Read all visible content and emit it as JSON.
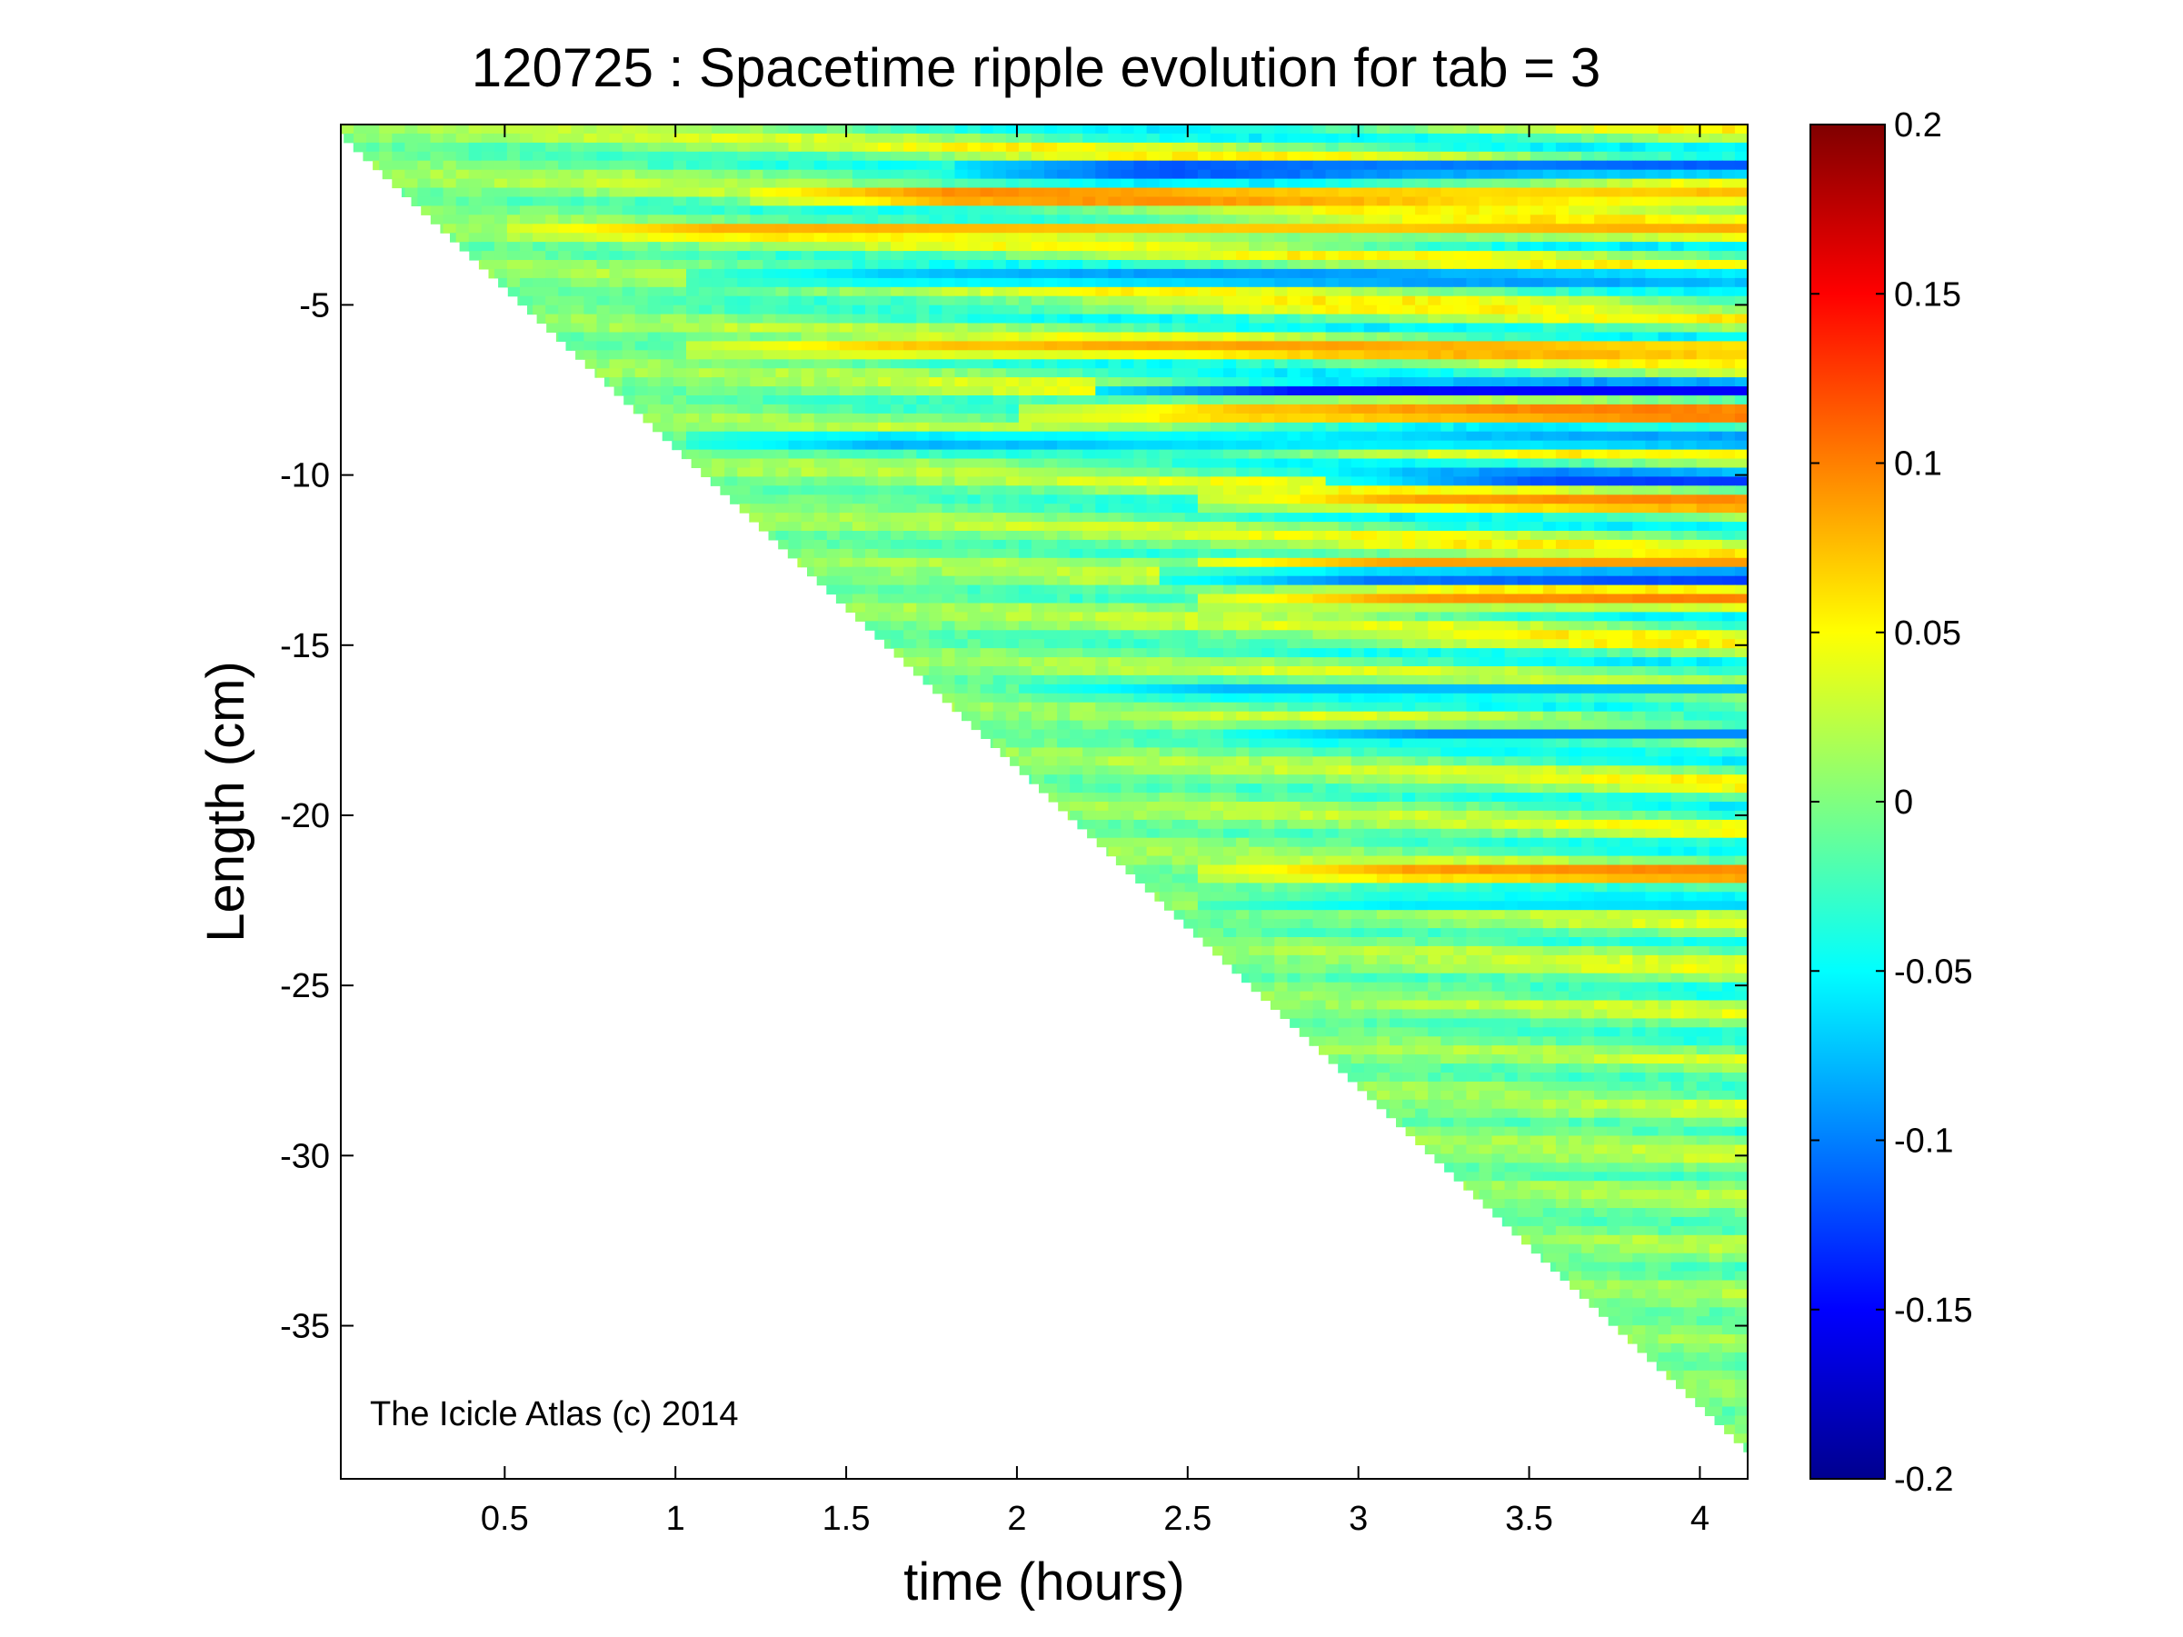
{
  "chart_data": {
    "type": "heatmap",
    "title": "120725 : Spacetime ripple evolution for tab = 3",
    "xlabel": "time (hours)",
    "ylabel": "Length (cm)",
    "xlim": [
      0.02,
      4.14
    ],
    "ylim": [
      -39.5,
      0.3
    ],
    "x_ticks": [
      0.5,
      1,
      1.5,
      2,
      2.5,
      3,
      3.5,
      4
    ],
    "x_tick_labels": [
      "0.5",
      "1",
      "1.5",
      "2",
      "2.5",
      "3",
      "3.5",
      "4"
    ],
    "y_ticks": [
      -5,
      -10,
      -15,
      -20,
      -25,
      -30,
      -35
    ],
    "y_tick_labels": [
      "-5",
      "-10",
      "-15",
      "-20",
      "-25",
      "-30",
      "-35"
    ],
    "colorbar": {
      "limits": [
        -0.2,
        0.2
      ],
      "ticks": [
        0.2,
        0.15,
        0.1,
        0.05,
        0,
        -0.05,
        -0.1,
        -0.15,
        -0.2
      ],
      "tick_labels": [
        "0.2",
        "0.15",
        "0.1",
        "0.05",
        "0",
        "-0.05",
        "-0.1",
        "-0.15",
        "-0.2"
      ],
      "colormap": "jet"
    },
    "data_region": {
      "front_start": [
        0.05,
        -0.3
      ],
      "front_end": [
        4.12,
        -38.5
      ]
    },
    "notable_bands": [
      {
        "y": -1.0,
        "value": -0.17,
        "x_from": 1.8,
        "x_to": 4.14
      },
      {
        "y": -1.8,
        "value": 0.12,
        "x_from": 1.2,
        "x_to": 4.14
      },
      {
        "y": -2.8,
        "value": 0.09,
        "x_from": 0.5,
        "x_to": 4.14
      },
      {
        "y": -4.2,
        "value": -0.11,
        "x_from": 1.0,
        "x_to": 4.14
      },
      {
        "y": -6.3,
        "value": 0.1,
        "x_from": 1.0,
        "x_to": 4.14
      },
      {
        "y": -7.5,
        "value": -0.16,
        "x_from": 2.2,
        "x_to": 4.14
      },
      {
        "y": -8.2,
        "value": 0.13,
        "x_from": 2.0,
        "x_to": 4.14
      },
      {
        "y": -9.0,
        "value": -0.11,
        "x_from": 1.0,
        "x_to": 4.14
      },
      {
        "y": -10.1,
        "value": -0.15,
        "x_from": 2.9,
        "x_to": 4.14
      },
      {
        "y": -10.8,
        "value": 0.11,
        "x_from": 2.5,
        "x_to": 4.14
      },
      {
        "y": -12.6,
        "value": 0.1,
        "x_from": 2.5,
        "x_to": 4.14
      },
      {
        "y": -13.0,
        "value": -0.16,
        "x_from": 2.4,
        "x_to": 4.14
      },
      {
        "y": -13.7,
        "value": 0.11,
        "x_from": 2.5,
        "x_to": 4.14
      },
      {
        "y": -16.3,
        "value": -0.08,
        "x_from": 2.0,
        "x_to": 4.14
      },
      {
        "y": -17.6,
        "value": -0.1,
        "x_from": 2.6,
        "x_to": 4.14
      },
      {
        "y": -21.7,
        "value": 0.12,
        "x_from": 2.5,
        "x_to": 4.14
      },
      {
        "y": -22.6,
        "value": -0.07,
        "x_from": 2.5,
        "x_to": 4.14
      }
    ],
    "annotation": "The Icicle Atlas (c) 2014"
  }
}
